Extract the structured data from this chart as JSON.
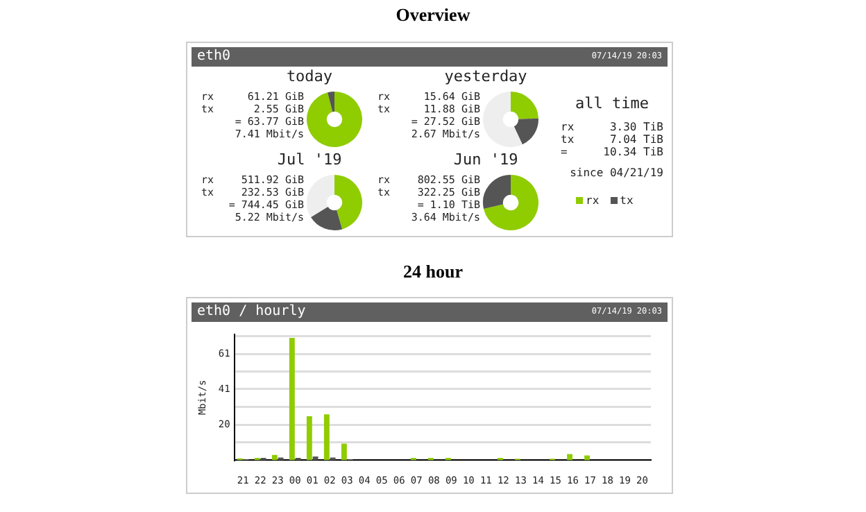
{
  "chart_data": [
    {
      "type": "other",
      "title": "Overview",
      "subtitle": "eth0",
      "annotations": [
        "07/14/19 20:03"
      ]
    },
    {
      "type": "donut",
      "title": "today",
      "categories": [
        null,
        null
      ],
      "values": [
        96.0,
        4.0
      ],
      "colors": [
        "#8fcc00",
        "#555555"
      ],
      "annotations": [
        "rx 61.21 GiB",
        "tx 2.55 GiB",
        "= 63.77 GiB",
        "7.41 Mbit/s"
      ]
    },
    {
      "type": "donut",
      "title": "yesterday",
      "categories": [
        null,
        null,
        null
      ],
      "values": [
        24.5,
        18.6,
        56.9
      ],
      "colors": [
        "#8fcc00",
        "#555555",
        "#eeeeee"
      ],
      "annotations": [
        "rx 15.64 GiB",
        "tx 11.88 GiB",
        "= 27.52 GiB",
        "2.67 Mbit/s"
      ]
    },
    {
      "type": "other",
      "title": "all time",
      "annotations": [
        "rx 3.30 TiB",
        "tx 7.04 TiB",
        "= 10.34 TiB",
        "since 04/21/19"
      ]
    },
    {
      "type": "donut",
      "title": "Jul '19",
      "categories": [
        null,
        null,
        null
      ],
      "values": [
        45.5,
        20.7,
        33.8
      ],
      "colors": [
        "#8fcc00",
        "#555555",
        "#eeeeee"
      ],
      "annotations": [
        "rx 511.92 GiB",
        "tx 232.53 GiB",
        "= 744.45 GiB",
        "5.22 Mbit/s"
      ]
    },
    {
      "type": "donut",
      "title": "Jun '19",
      "categories": [
        "rx",
        "tx"
      ],
      "values": [
        71.4,
        28.6
      ],
      "colors": [
        "#8fcc00",
        "#555555"
      ],
      "annotations": [
        "rx 802.55 GiB",
        "tx 322.25 GiB",
        "= 1.10 TiB",
        "3.64 Mbit/s"
      ],
      "legend": "right"
    },
    {
      "type": "bar",
      "title": "24 hour",
      "subtitle": "eth0 / hourly",
      "annotations": [
        "07/14/19 20:03"
      ],
      "ylabel": "Mbit/s",
      "categories": [
        "21",
        "22",
        "23",
        "00",
        "01",
        "02",
        "03",
        "04",
        "05",
        "06",
        "07",
        "08",
        "09",
        "10",
        "11",
        "12",
        "13",
        "14",
        "15",
        "16",
        "17",
        "18",
        "19",
        "20"
      ],
      "series": [
        {
          "color": "#8fcc00",
          "values": [
            1,
            1.3,
            3,
            70.2,
            25.2,
            26.3,
            9.4,
            0,
            0,
            0,
            1.3,
            1.3,
            1.3,
            0,
            0,
            1.3,
            0.8,
            0,
            0.8,
            3.5,
            2.7,
            0,
            0,
            0
          ]
        },
        {
          "color": "#555555",
          "values": [
            0.5,
            1.3,
            1.5,
            1.3,
            2.1,
            1.5,
            0.5,
            0,
            0,
            0,
            0,
            0,
            0,
            0,
            0,
            0,
            0,
            0,
            0,
            0,
            0,
            0,
            0,
            0
          ]
        }
      ],
      "ylim": [
        0,
        72
      ],
      "yticks": [
        {
          "value": 10.2,
          "label": null
        },
        {
          "value": 20.3,
          "label": "20"
        },
        {
          "value": 30.5,
          "label": null
        },
        {
          "value": 40.7,
          "label": "41"
        },
        {
          "value": 50.8,
          "label": null
        },
        {
          "value": 61,
          "label": "61"
        },
        {
          "value": 71.2,
          "label": null
        }
      ],
      "grid": "y"
    }
  ]
}
